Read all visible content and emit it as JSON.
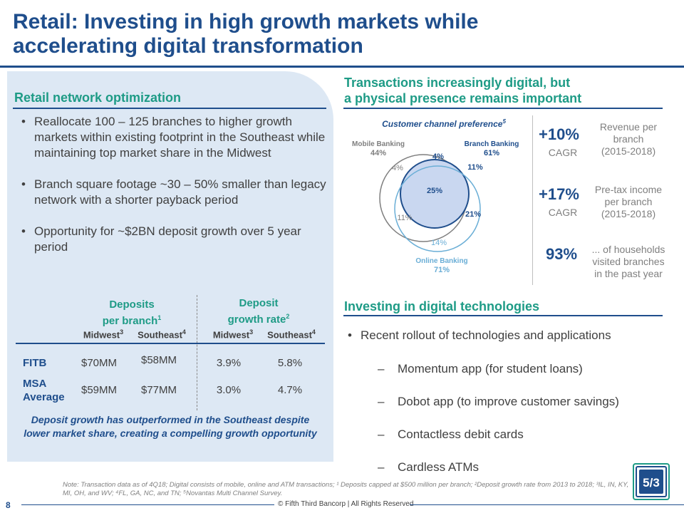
{
  "title": {
    "line1": "Retail: Investing in high growth markets while",
    "line2": "accelerating digital transformation"
  },
  "left": {
    "heading": "Retail network optimization",
    "bullets": [
      "Reallocate 100 – 125 branches to higher growth markets within existing footprint in the Southeast while maintaining top market share in the Midwest",
      "Branch square footage ~30 – 50% smaller than legacy network with a shorter payback period",
      "Opportunity for ~$2BN deposit growth over 5 year period"
    ],
    "table": {
      "group1": {
        "line1": "Deposits",
        "line2": "per branch",
        "sup": "1"
      },
      "group2": {
        "line1": "Deposit",
        "line2": "growth rate",
        "sup": "2"
      },
      "subheads": [
        {
          "label": "Midwest",
          "sup": "3"
        },
        {
          "label": "Southeast",
          "sup": "4"
        },
        {
          "label": "Midwest",
          "sup": "3"
        },
        {
          "label": "Southeast",
          "sup": "4"
        }
      ],
      "rows": [
        {
          "label_line1": "FITB",
          "label_line2": "",
          "values": [
            "$70MM",
            "$58MM",
            "3.9%",
            "5.8%"
          ]
        },
        {
          "label_line1": "MSA",
          "label_line2": "Average",
          "values": [
            "$59MM",
            "$77MM",
            "3.0%",
            "4.7%"
          ]
        }
      ]
    },
    "callout": "Deposit growth has outperformed in the Southeast despite lower market share, creating a compelling growth opportunity"
  },
  "right": {
    "heading_line1": "Transactions increasingly digital, but",
    "heading_line2": "a physical presence remains important",
    "venn": {
      "title": "Customer channel preference",
      "title_sup": "5",
      "mobile": {
        "label": "Mobile Banking",
        "pct": "44%"
      },
      "branch": {
        "label": "Branch Banking",
        "pct": "61%"
      },
      "online": {
        "label": "Online Banking",
        "pct": "71%"
      },
      "regions": {
        "mobile_only": "4%",
        "mobile_branch": "4%",
        "branch_only": "11%",
        "all_three": "25%",
        "branch_online": "21%",
        "mobile_online": "11%",
        "online_only": "14%"
      }
    },
    "kpis": [
      {
        "big": "+10%",
        "sub": "CAGR",
        "desc": [
          "Revenue per",
          "branch",
          "(2015-2018)"
        ]
      },
      {
        "big": "+17%",
        "sub": "CAGR",
        "desc": [
          "Pre-tax income",
          "per branch",
          "(2015-2018)"
        ]
      },
      {
        "big": "93%",
        "sub": "",
        "desc": [
          "... of households",
          "visited branches",
          "in the past year"
        ]
      }
    ],
    "digital_heading": "Investing in digital technologies",
    "digital_main": "Recent rollout of technologies and applications",
    "digital_items": [
      "Momentum app (for student loans)",
      "Dobot app (to improve customer savings)",
      "Contactless debit cards",
      "Cardless ATMs"
    ]
  },
  "footer": {
    "note": "Note: Transaction data as of 4Q18; Digital consists of mobile, online and ATM transactions; ¹ Deposits capped at $500 million per branch; ²Deposit growth rate  from 2013 to 2018;  ³IL, IN, KY, MI, OH, and WV; ⁴FL, GA, NC, and TN; ⁵Novantas Multi Channel Survey.",
    "page": "8",
    "copyright": "© Fifth Third Bancorp | All Rights Reserved"
  },
  "logo": {
    "text": "5/3"
  },
  "colors": {
    "brand_blue": "#1f4e8c",
    "accent_green": "#1e9b86",
    "panel_blue": "#dde8f4",
    "online_circle": "#6aaed6",
    "branch_fill": "#c9d7f0"
  }
}
